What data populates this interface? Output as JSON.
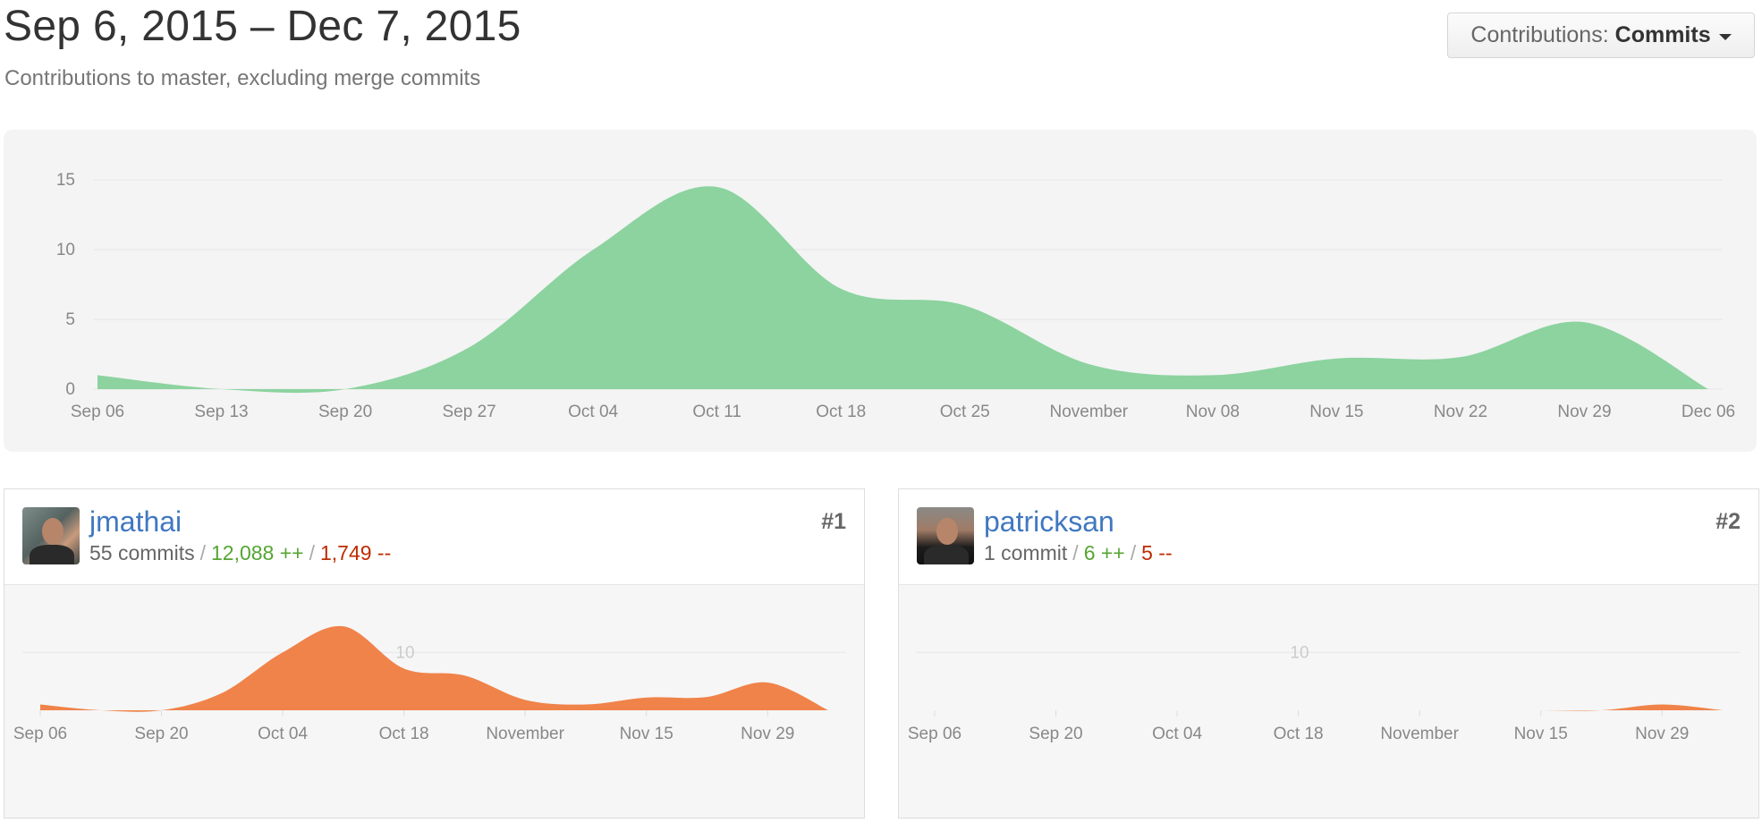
{
  "header": {
    "title": "Sep 6, 2015 – Dec 7, 2015",
    "subtitle": "Contributions to master, excluding merge commits"
  },
  "contributions_select": {
    "label": "Contributions:",
    "value": "Commits",
    "icon": "caret-down-icon"
  },
  "colors": {
    "main_area": "#8cd39f",
    "contributor_area": "#f0834a",
    "link": "#4078c0",
    "additions": "#55a532",
    "deletions": "#bd2c00"
  },
  "chart_data": [
    {
      "type": "area",
      "x": [
        "Sep 06",
        "Sep 13",
        "Sep 20",
        "Sep 27",
        "Oct 04",
        "Oct 11",
        "Oct 18",
        "Oct 25",
        "November",
        "Nov 08",
        "Nov 15",
        "Nov 22",
        "Nov 29",
        "Dec 06"
      ],
      "values": [
        1,
        0,
        0,
        3,
        10,
        14.5,
        7.2,
        6,
        1.8,
        1,
        2.2,
        2.3,
        4.8,
        0
      ],
      "yticks": [
        0,
        5,
        10,
        15
      ],
      "ylim": [
        0,
        17
      ],
      "grid": true,
      "color": "#8cd39f"
    },
    {
      "type": "area",
      "x": [
        "Sep 06",
        "Sep 13",
        "Sep 20",
        "Sep 27",
        "Oct 04",
        "Oct 11",
        "Oct 18",
        "Oct 25",
        "November",
        "Nov 08",
        "Nov 15",
        "Nov 22",
        "Nov 29",
        "Dec 06"
      ],
      "values": [
        1,
        0,
        0,
        3,
        10,
        14.5,
        7.2,
        6,
        1.8,
        1,
        2.2,
        2.3,
        4.8,
        0
      ],
      "xticks": [
        "Sep 06",
        "Sep 20",
        "Oct 04",
        "Oct 18",
        "November",
        "Nov 15",
        "Nov 29"
      ],
      "yticks": [
        10
      ],
      "ylim": [
        0,
        17
      ],
      "color": "#f0834a"
    },
    {
      "type": "area",
      "x": [
        "Sep 06",
        "Sep 13",
        "Sep 20",
        "Sep 27",
        "Oct 04",
        "Oct 11",
        "Oct 18",
        "Oct 25",
        "November",
        "Nov 08",
        "Nov 15",
        "Nov 22",
        "Nov 29",
        "Dec 06"
      ],
      "values": [
        0,
        0,
        0,
        0,
        0,
        0,
        0,
        0,
        0,
        0,
        0,
        0,
        1,
        0
      ],
      "xticks": [
        "Sep 06",
        "Sep 20",
        "Oct 04",
        "Oct 18",
        "November",
        "Nov 15",
        "Nov 29"
      ],
      "yticks": [
        10
      ],
      "ylim": [
        0,
        17
      ],
      "color": "#f0834a"
    }
  ],
  "contributors": [
    {
      "username": "jmathai",
      "rank": "#1",
      "commits": "55 commits",
      "additions": "12,088 ++",
      "deletions": "1,749 --",
      "sep": "/"
    },
    {
      "username": "patricksan",
      "rank": "#2",
      "commits": "1 commit",
      "additions": "6 ++",
      "deletions": "5 --",
      "sep": "/"
    }
  ]
}
